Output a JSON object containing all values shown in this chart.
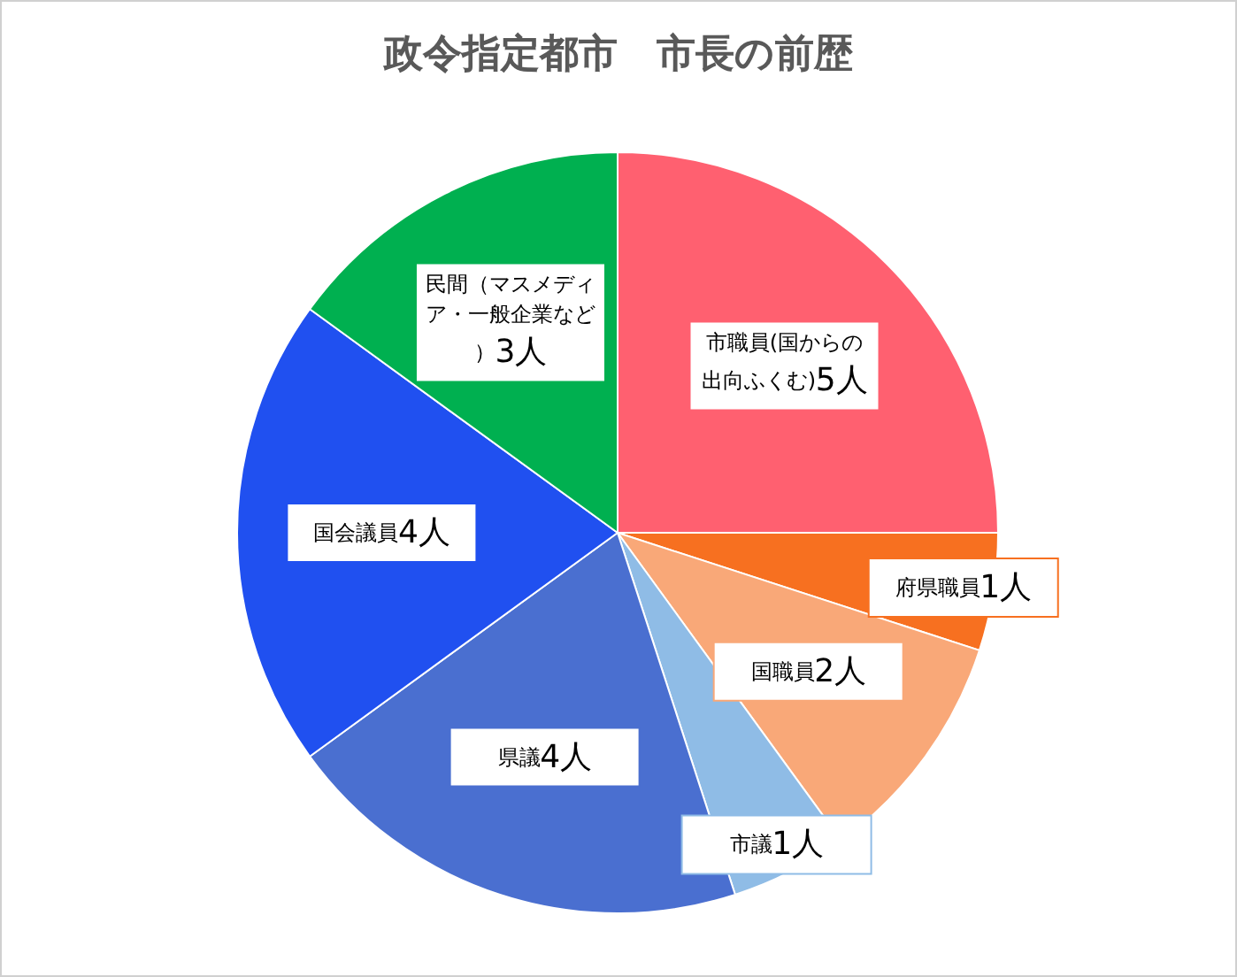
{
  "chart_data": {
    "type": "pie",
    "title": "政令指定都市　市長の前歴",
    "categories": [
      "市職員(国からの出向ふくむ)",
      "府県職員",
      "国職員",
      "市議",
      "県議",
      "国会議員",
      "民間（マスメディア・一般企業など）"
    ],
    "values": [
      5,
      1,
      2,
      1,
      4,
      4,
      3
    ],
    "value_labels": [
      "5人",
      "1人",
      "2人",
      "1人",
      "4人",
      "4人",
      "3人"
    ],
    "colors": [
      "#ff6070",
      "#f77020",
      "#f9a878",
      "#8fbce6",
      "#4a6fd0",
      "#2050f0",
      "#00b050"
    ],
    "legend": false
  }
}
